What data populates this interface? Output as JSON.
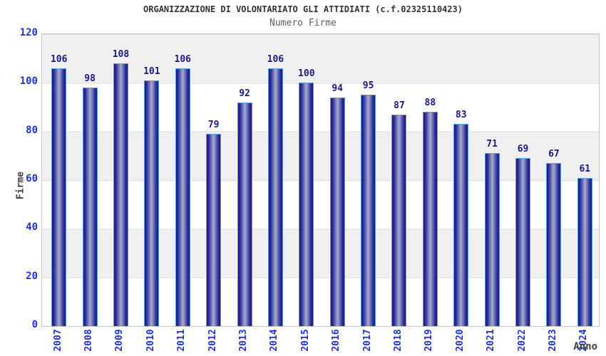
{
  "chart_data": {
    "type": "bar",
    "title": "ORGANIZZAZIONE DI VOLONTARIATO GLI ATTIDIATI (c.f.02325110423)",
    "subtitle": "Numero Firme",
    "xlabel": "Anno",
    "ylabel": "Firme",
    "categories": [
      "2007",
      "2008",
      "2009",
      "2010",
      "2011",
      "2012",
      "2013",
      "2014",
      "2015",
      "2016",
      "2017",
      "2018",
      "2019",
      "2020",
      "2021",
      "2022",
      "2023",
      "2024"
    ],
    "values": [
      106,
      98,
      108,
      101,
      106,
      79,
      92,
      106,
      100,
      94,
      95,
      87,
      88,
      83,
      71,
      69,
      67,
      61
    ],
    "ylim": [
      0,
      120
    ],
    "yticks": [
      0,
      20,
      40,
      60,
      80,
      100,
      120
    ],
    "grid": "horizontal-bands-every-20",
    "legend": "none",
    "colors": {
      "title": "#333333",
      "subtitle": "#606060",
      "tick_label": "#2233cc",
      "value_label": "#191980",
      "axis_label": "#404040",
      "bar_border": "#5b9be0",
      "bar_edge": "#1a1a80",
      "bar_center": "#a8add4",
      "band_gray": "#f0f0f0",
      "band_white": "#ffffff",
      "plot_border": "#c8c8c8"
    }
  }
}
